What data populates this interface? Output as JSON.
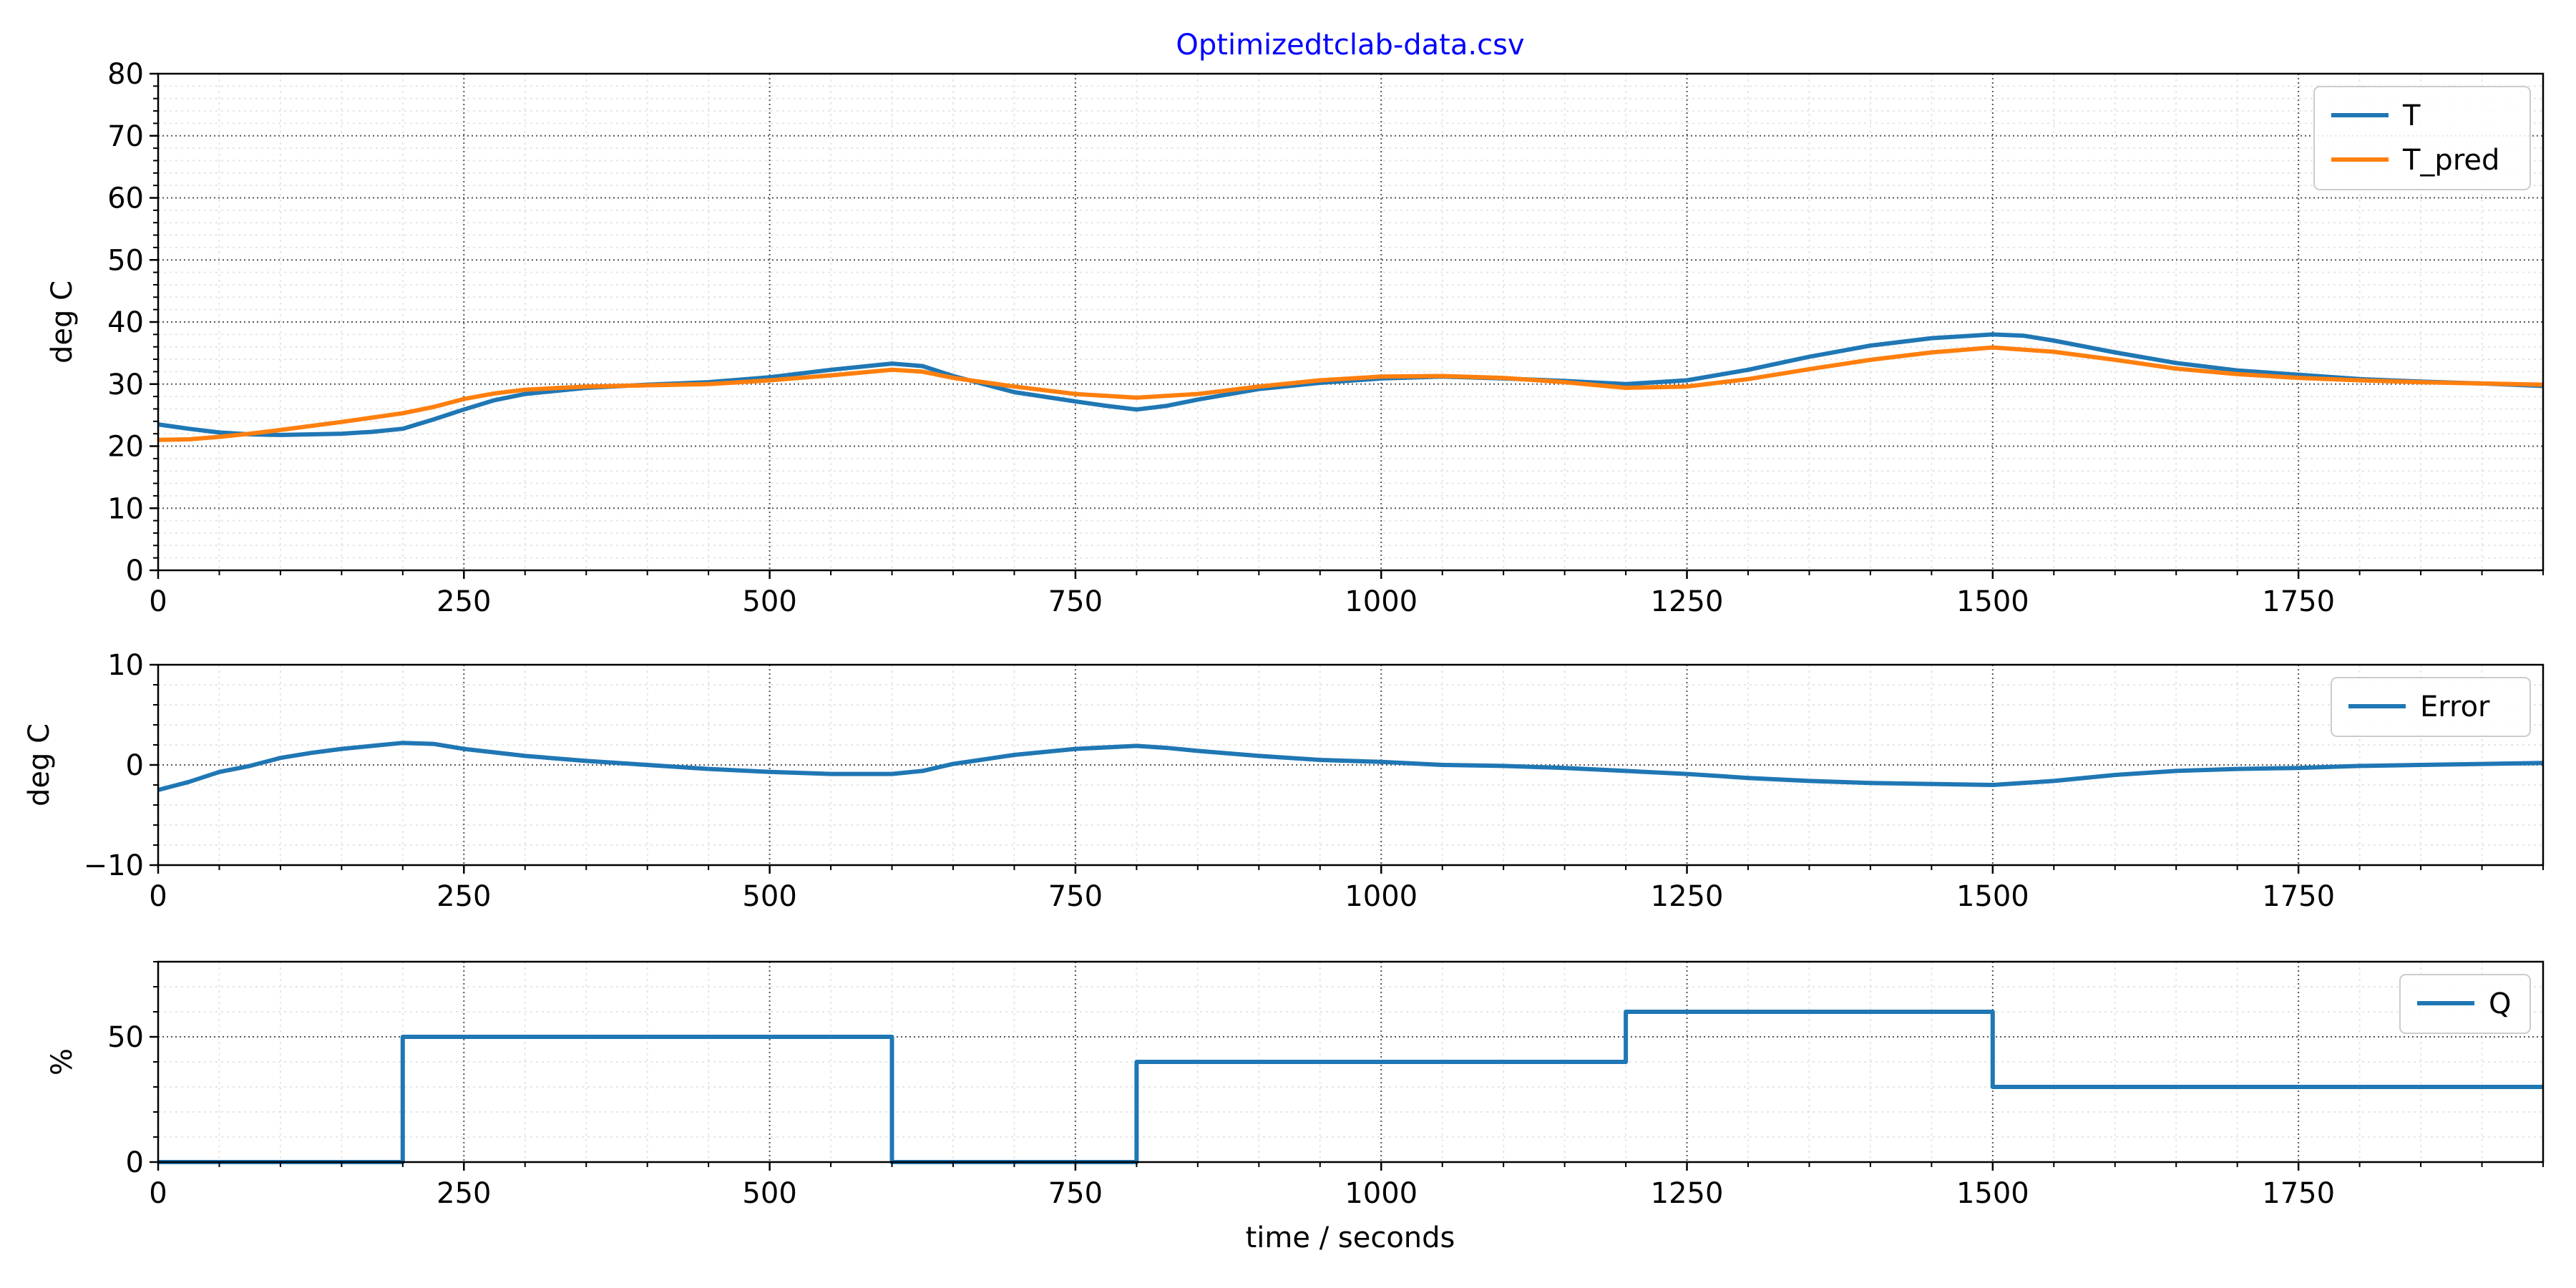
{
  "figure": {
    "title": "Optimizedtclab-data.csv",
    "xlabel": "time / seconds"
  },
  "chart_data": [
    {
      "type": "line",
      "title": "Optimizedtclab-data.csv",
      "xlabel": "",
      "ylabel": "deg C",
      "xlim": [
        0,
        1950
      ],
      "ylim": [
        0,
        80
      ],
      "xticks": [
        0,
        250,
        500,
        750,
        1000,
        1250,
        1500,
        1750
      ],
      "yticks": [
        0,
        10,
        20,
        30,
        40,
        50,
        60,
        70,
        80
      ],
      "grid": true,
      "legend": "top-right",
      "series": [
        {
          "name": "T",
          "color": "#1f77b4",
          "x": [
            0,
            25,
            50,
            75,
            100,
            125,
            150,
            175,
            200,
            225,
            250,
            275,
            300,
            350,
            400,
            450,
            500,
            550,
            600,
            625,
            650,
            700,
            750,
            775,
            800,
            825,
            850,
            900,
            950,
            1000,
            1050,
            1100,
            1150,
            1200,
            1250,
            1300,
            1350,
            1400,
            1450,
            1500,
            1525,
            1550,
            1600,
            1650,
            1700,
            1750,
            1800,
            1850,
            1900,
            1950
          ],
          "values": [
            23.5,
            22.8,
            22.2,
            21.9,
            21.8,
            21.9,
            22.0,
            22.3,
            22.8,
            24.3,
            25.9,
            27.4,
            28.4,
            29.4,
            29.9,
            30.3,
            31.1,
            32.3,
            33.3,
            32.9,
            31.3,
            28.7,
            27.2,
            26.5,
            25.9,
            26.5,
            27.5,
            29.2,
            30.2,
            30.9,
            31.2,
            30.9,
            30.5,
            30.0,
            30.6,
            32.3,
            34.4,
            36.2,
            37.4,
            38.0,
            37.8,
            37.0,
            35.1,
            33.4,
            32.2,
            31.5,
            30.8,
            30.4,
            30.1,
            29.7
          ]
        },
        {
          "name": "T_pred",
          "color": "#ff7f0e",
          "x": [
            0,
            25,
            50,
            75,
            100,
            150,
            200,
            225,
            250,
            275,
            300,
            350,
            400,
            450,
            500,
            550,
            600,
            625,
            650,
            700,
            750,
            800,
            850,
            900,
            950,
            1000,
            1050,
            1100,
            1150,
            1200,
            1250,
            1300,
            1350,
            1400,
            1450,
            1500,
            1550,
            1600,
            1650,
            1700,
            1750,
            1800,
            1850,
            1900,
            1950
          ],
          "values": [
            21.0,
            21.1,
            21.5,
            22.0,
            22.6,
            23.9,
            25.3,
            26.3,
            27.6,
            28.5,
            29.1,
            29.6,
            29.8,
            30.0,
            30.6,
            31.4,
            32.3,
            32.0,
            31.0,
            29.6,
            28.4,
            27.8,
            28.4,
            29.6,
            30.6,
            31.2,
            31.3,
            31.0,
            30.3,
            29.4,
            29.6,
            30.8,
            32.4,
            33.9,
            35.1,
            35.9,
            35.2,
            33.9,
            32.5,
            31.6,
            31.0,
            30.6,
            30.3,
            30.1,
            29.9
          ]
        }
      ]
    },
    {
      "type": "line",
      "ylabel": "deg C",
      "xlabel": "",
      "xlim": [
        0,
        1950
      ],
      "ylim": [
        -10,
        10
      ],
      "xticks": [
        0,
        250,
        500,
        750,
        1000,
        1250,
        1500,
        1750
      ],
      "yticks": [
        -10,
        0,
        10
      ],
      "grid": true,
      "legend": "top-right",
      "series": [
        {
          "name": "Error",
          "color": "#1f77b4",
          "x": [
            0,
            25,
            50,
            75,
            100,
            125,
            150,
            175,
            200,
            225,
            250,
            300,
            350,
            400,
            450,
            500,
            550,
            600,
            625,
            650,
            700,
            750,
            800,
            825,
            850,
            900,
            950,
            1000,
            1050,
            1100,
            1150,
            1200,
            1250,
            1300,
            1350,
            1400,
            1450,
            1500,
            1550,
            1600,
            1650,
            1700,
            1750,
            1800,
            1850,
            1900,
            1950
          ],
          "values": [
            -2.5,
            -1.7,
            -0.7,
            -0.1,
            0.7,
            1.2,
            1.6,
            1.9,
            2.2,
            2.1,
            1.6,
            0.9,
            0.4,
            0.0,
            -0.4,
            -0.7,
            -0.9,
            -0.9,
            -0.6,
            0.1,
            1.0,
            1.6,
            1.9,
            1.7,
            1.4,
            0.9,
            0.5,
            0.3,
            0.0,
            -0.1,
            -0.3,
            -0.6,
            -0.9,
            -1.3,
            -1.6,
            -1.8,
            -1.9,
            -2.0,
            -1.6,
            -1.0,
            -0.6,
            -0.4,
            -0.3,
            -0.1,
            0.0,
            0.1,
            0.2
          ]
        }
      ]
    },
    {
      "type": "line",
      "ylabel": "%",
      "xlabel": "time / seconds",
      "xlim": [
        0,
        1950
      ],
      "ylim": [
        0,
        80
      ],
      "xticks": [
        0,
        250,
        500,
        750,
        1000,
        1250,
        1500,
        1750
      ],
      "yticks": [
        0,
        50
      ],
      "grid": true,
      "legend": "top-right",
      "step": true,
      "series": [
        {
          "name": "Q",
          "color": "#1f77b4",
          "x": [
            0,
            200,
            200,
            600,
            600,
            800,
            800,
            1200,
            1200,
            1500,
            1500,
            1950
          ],
          "values": [
            0,
            0,
            50,
            50,
            0,
            0,
            40,
            40,
            60,
            60,
            30,
            30
          ]
        }
      ]
    }
  ]
}
